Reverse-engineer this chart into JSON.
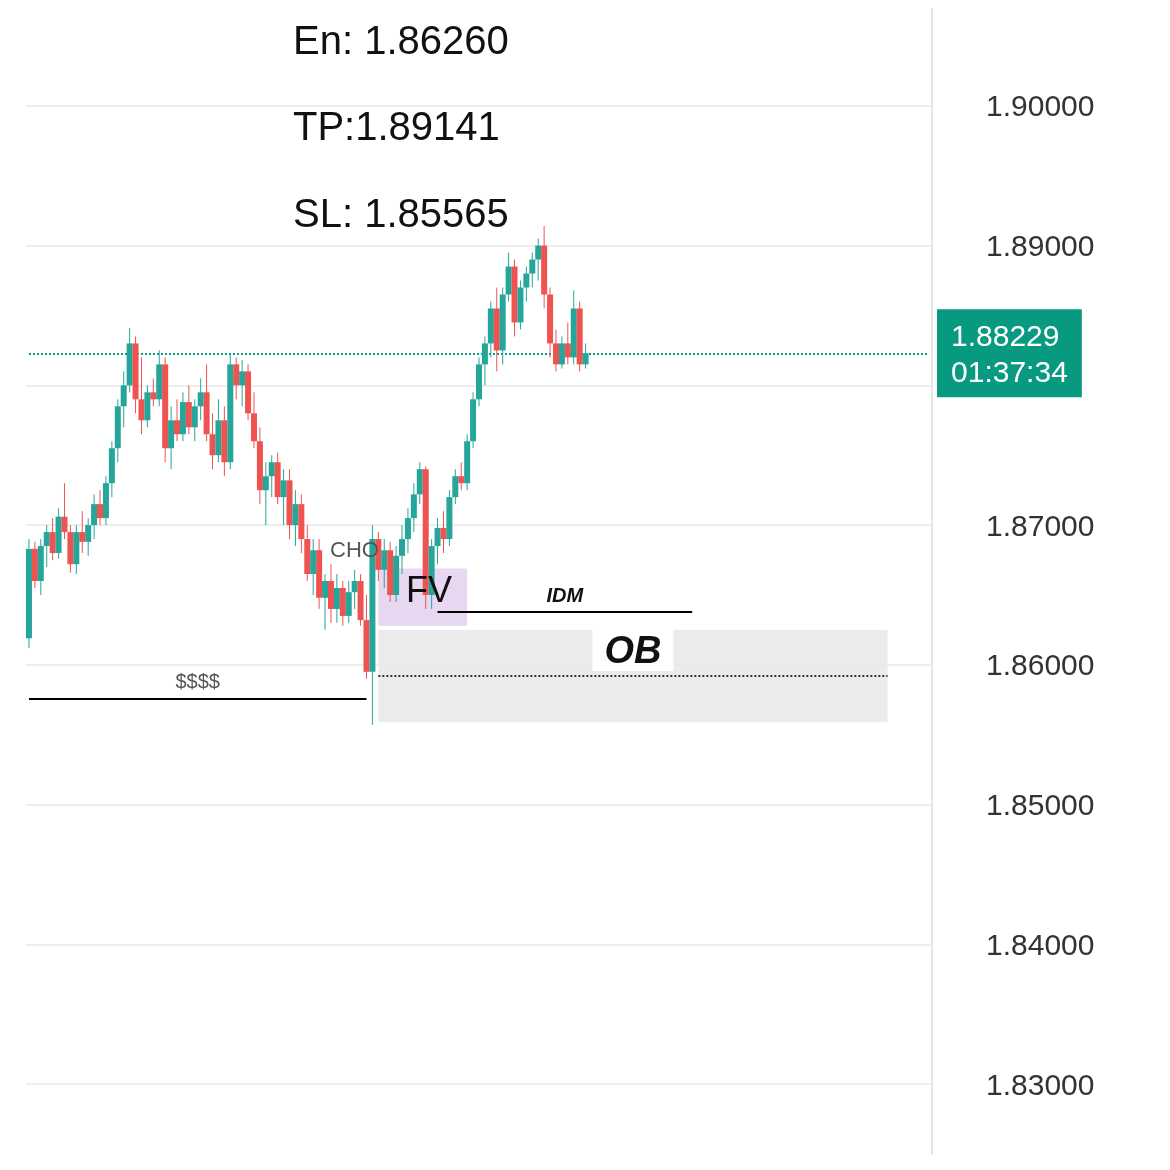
{
  "chart_data": {
    "type": "candlestick",
    "categories": [
      null,
      null,
      null,
      null,
      null,
      null,
      null,
      null,
      null,
      null,
      null,
      null,
      null,
      null,
      null,
      null,
      null,
      null,
      null,
      null,
      null,
      null,
      null,
      null,
      null,
      null,
      null,
      null,
      null,
      null,
      null,
      null,
      null,
      null,
      null,
      null,
      null,
      null,
      null,
      null,
      null,
      null,
      null,
      null,
      null,
      null,
      null,
      null,
      null,
      null,
      null,
      null,
      null,
      null,
      null,
      null,
      null,
      null,
      null,
      null,
      null,
      null,
      null,
      null,
      null,
      null,
      null,
      null,
      null,
      null,
      null,
      null,
      null,
      null,
      null,
      null,
      null,
      null,
      null,
      null,
      null,
      null,
      null,
      null,
      null,
      null,
      null,
      null,
      null,
      null,
      null,
      null,
      null,
      null,
      null,
      null,
      null,
      null,
      null,
      null,
      null,
      null,
      null,
      null,
      null,
      null,
      null,
      null,
      null,
      null,
      null,
      null,
      null,
      null,
      null,
      null,
      null,
      null,
      null,
      null,
      null,
      null,
      null,
      null,
      null,
      null,
      null,
      null,
      null,
      null,
      null,
      null,
      null,
      null,
      null,
      null,
      null,
      null,
      null,
      null,
      null,
      null,
      null,
      null,
      null,
      null,
      null,
      null,
      null,
      null,
      null,
      null,
      null
    ],
    "ohlc": [
      [
        1.8619,
        1.869,
        1.8612,
        1.8683
      ],
      [
        1.8683,
        1.8688,
        1.8655,
        1.866
      ],
      [
        1.866,
        1.869,
        1.865,
        1.8685
      ],
      [
        1.8685,
        1.87,
        1.867,
        1.8695
      ],
      [
        1.8695,
        1.8705,
        1.8675,
        1.868
      ],
      [
        1.868,
        1.8712,
        1.8676,
        1.8706
      ],
      [
        1.8706,
        1.873,
        1.869,
        1.8695
      ],
      [
        1.8695,
        1.87,
        1.8666,
        1.8672
      ],
      [
        1.8672,
        1.87,
        1.8665,
        1.8695
      ],
      [
        1.8695,
        1.871,
        1.868,
        1.8688
      ],
      [
        1.8688,
        1.8705,
        1.8678,
        1.87
      ],
      [
        1.87,
        1.8722,
        1.869,
        1.8715
      ],
      [
        1.8715,
        1.8725,
        1.87,
        1.8705
      ],
      [
        1.8705,
        1.8735,
        1.87,
        1.873
      ],
      [
        1.873,
        1.876,
        1.872,
        1.8755
      ],
      [
        1.8755,
        1.879,
        1.8745,
        1.8785
      ],
      [
        1.8785,
        1.881,
        1.877,
        1.88
      ],
      [
        1.88,
        1.8841,
        1.8795,
        1.883
      ],
      [
        1.883,
        1.8835,
        1.878,
        1.879
      ],
      [
        1.879,
        1.882,
        1.8765,
        1.8775
      ],
      [
        1.8775,
        1.88,
        1.877,
        1.8795
      ],
      [
        1.8795,
        1.8805,
        1.8785,
        1.879
      ],
      [
        1.879,
        1.8825,
        1.8785,
        1.8815
      ],
      [
        1.8815,
        1.882,
        1.8745,
        1.8755
      ],
      [
        1.8755,
        1.8785,
        1.874,
        1.8775
      ],
      [
        1.8775,
        1.879,
        1.876,
        1.8765
      ],
      [
        1.8765,
        1.8795,
        1.876,
        1.8788
      ],
      [
        1.8788,
        1.88,
        1.8765,
        1.877
      ],
      [
        1.877,
        1.879,
        1.876,
        1.8785
      ],
      [
        1.8785,
        1.8805,
        1.8775,
        1.8795
      ],
      [
        1.8795,
        1.8815,
        1.876,
        1.8765
      ],
      [
        1.8765,
        1.878,
        1.874,
        1.875
      ],
      [
        1.875,
        1.879,
        1.8745,
        1.8775
      ],
      [
        1.8775,
        1.8785,
        1.8735,
        1.8745
      ],
      [
        1.8745,
        1.8822,
        1.874,
        1.8815
      ],
      [
        1.8815,
        1.882,
        1.879,
        1.88
      ],
      [
        1.88,
        1.8818,
        1.8785,
        1.881
      ],
      [
        1.881,
        1.8815,
        1.8775,
        1.878
      ],
      [
        1.878,
        1.8795,
        1.8755,
        1.876
      ],
      [
        1.876,
        1.877,
        1.8715,
        1.8725
      ],
      [
        1.8725,
        1.8745,
        1.87,
        1.8735
      ],
      [
        1.8735,
        1.875,
        1.872,
        1.8745
      ],
      [
        1.8745,
        1.8752,
        1.8715,
        1.872
      ],
      [
        1.872,
        1.874,
        1.87,
        1.8732
      ],
      [
        1.8732,
        1.874,
        1.869,
        1.87
      ],
      [
        1.87,
        1.8725,
        1.8685,
        1.8715
      ],
      [
        1.8715,
        1.8722,
        1.868,
        1.869
      ],
      [
        1.869,
        1.87,
        1.866,
        1.8665
      ],
      [
        1.8665,
        1.869,
        1.865,
        1.8682
      ],
      [
        1.8682,
        1.869,
        1.864,
        1.8648
      ],
      [
        1.8648,
        1.8665,
        1.8625,
        1.866
      ],
      [
        1.866,
        1.8672,
        1.863,
        1.864
      ],
      [
        1.864,
        1.8665,
        1.863,
        1.8655
      ],
      [
        1.8655,
        1.866,
        1.8628,
        1.8635
      ],
      [
        1.8635,
        1.866,
        1.863,
        1.8652
      ],
      [
        1.8652,
        1.8668,
        1.864,
        1.866
      ],
      [
        1.866,
        1.8665,
        1.8628,
        1.8632
      ],
      [
        1.8632,
        1.865,
        1.859,
        1.8595
      ],
      [
        1.8595,
        1.87,
        1.8557,
        1.869
      ],
      [
        1.869,
        1.8695,
        1.866,
        1.8668
      ],
      [
        1.8668,
        1.869,
        1.8655,
        1.8682
      ],
      [
        1.8682,
        1.8688,
        1.8645,
        1.865
      ],
      [
        1.865,
        1.8685,
        1.8645,
        1.8678
      ],
      [
        1.8678,
        1.87,
        1.8665,
        1.869
      ],
      [
        1.869,
        1.8712,
        1.868,
        1.8705
      ],
      [
        1.8705,
        1.873,
        1.8695,
        1.8722
      ],
      [
        1.8722,
        1.8745,
        1.8715,
        1.874
      ],
      [
        1.874,
        1.8742,
        1.864,
        1.865
      ],
      [
        1.865,
        1.869,
        1.864,
        1.8685
      ],
      [
        1.8685,
        1.8705,
        1.8672,
        1.8698
      ],
      [
        1.8698,
        1.871,
        1.868,
        1.869
      ],
      [
        1.869,
        1.8725,
        1.8685,
        1.872
      ],
      [
        1.872,
        1.874,
        1.8715,
        1.8735
      ],
      [
        1.8735,
        1.8745,
        1.8725,
        1.873
      ],
      [
        1.873,
        1.8765,
        1.8725,
        1.876
      ],
      [
        1.876,
        1.8795,
        1.8755,
        1.879
      ],
      [
        1.879,
        1.882,
        1.8785,
        1.8815
      ],
      [
        1.8815,
        1.8835,
        1.88,
        1.883
      ],
      [
        1.883,
        1.886,
        1.882,
        1.8855
      ],
      [
        1.8855,
        1.887,
        1.881,
        1.8825
      ],
      [
        1.8825,
        1.887,
        1.8815,
        1.8865
      ],
      [
        1.8865,
        1.8895,
        1.886,
        1.8885
      ],
      [
        1.8885,
        1.889,
        1.8835,
        1.8845
      ],
      [
        1.8845,
        1.8875,
        1.884,
        1.887
      ],
      [
        1.887,
        1.8885,
        1.886,
        1.888
      ],
      [
        1.888,
        1.8895,
        1.887,
        1.889
      ],
      [
        1.889,
        1.8905,
        1.8875,
        1.89
      ],
      [
        1.89,
        1.8914,
        1.8855,
        1.8865
      ],
      [
        1.8865,
        1.887,
        1.882,
        1.883
      ],
      [
        1.883,
        1.884,
        1.881,
        1.8815
      ],
      [
        1.8815,
        1.8835,
        1.8812,
        1.883
      ],
      [
        1.883,
        1.8845,
        1.8815,
        1.882
      ],
      [
        1.882,
        1.8868,
        1.8815,
        1.8855
      ],
      [
        1.8855,
        1.886,
        1.881,
        1.8815
      ],
      [
        1.8815,
        1.883,
        1.8812,
        1.8823
      ],
      null,
      null,
      null,
      null,
      null,
      null,
      null,
      null,
      null,
      null,
      null,
      null,
      null,
      null,
      null,
      null,
      null,
      null,
      null,
      null,
      null,
      null,
      null,
      null,
      null,
      null,
      null,
      null,
      null,
      null,
      null,
      null,
      null,
      null,
      null,
      null,
      null,
      null,
      null,
      null,
      null,
      null,
      null,
      null,
      null,
      null,
      null,
      null,
      null,
      null,
      null,
      null,
      null,
      null,
      null,
      null,
      null,
      null
    ],
    "ylim": [
      1.825,
      1.907
    ],
    "yticks": [
      {
        "value": 1.83,
        "label": "1.83000"
      },
      {
        "value": 1.84,
        "label": "1.84000"
      },
      {
        "value": 1.85,
        "label": "1.85000"
      },
      {
        "value": 1.86,
        "label": "1.86000"
      },
      {
        "value": 1.87,
        "label": "1.87000"
      },
      {
        "value": 1.88,
        "label": null
      },
      {
        "value": 1.89,
        "label": "1.89000"
      },
      {
        "value": 1.9,
        "label": "1.90000"
      }
    ],
    "tick_labels": "y",
    "grid": "y",
    "ref_lines": [
      {
        "axis": "y",
        "value": 1.88229,
        "label": "1.88229\n01:37:34",
        "color": "#089981",
        "line_style": "dotted"
      },
      {
        "axis": "y",
        "value": 1.8576,
        "label": "$$$$",
        "color": "#000000",
        "line_style": "solid"
      },
      {
        "axis": "y",
        "value": 1.8638,
        "label": "IDM",
        "color": "#000000",
        "line_style": "solid"
      },
      {
        "axis": "y",
        "value": 1.8592,
        "label": "OB",
        "color": "#333333",
        "line_style": "dotted"
      }
    ],
    "bands": [
      {
        "axis": "y",
        "from": 1.8559,
        "to": 1.8625,
        "color": "#e8e8e8"
      },
      {
        "axis": "y",
        "from": 1.8628,
        "to": 1.8669,
        "color": "#e3d0ee"
      }
    ],
    "annotations": [
      "En: 1.86260",
      "TP:1.89141",
      "SL: 1.85565",
      "CHO",
      "FV"
    ]
  }
}
